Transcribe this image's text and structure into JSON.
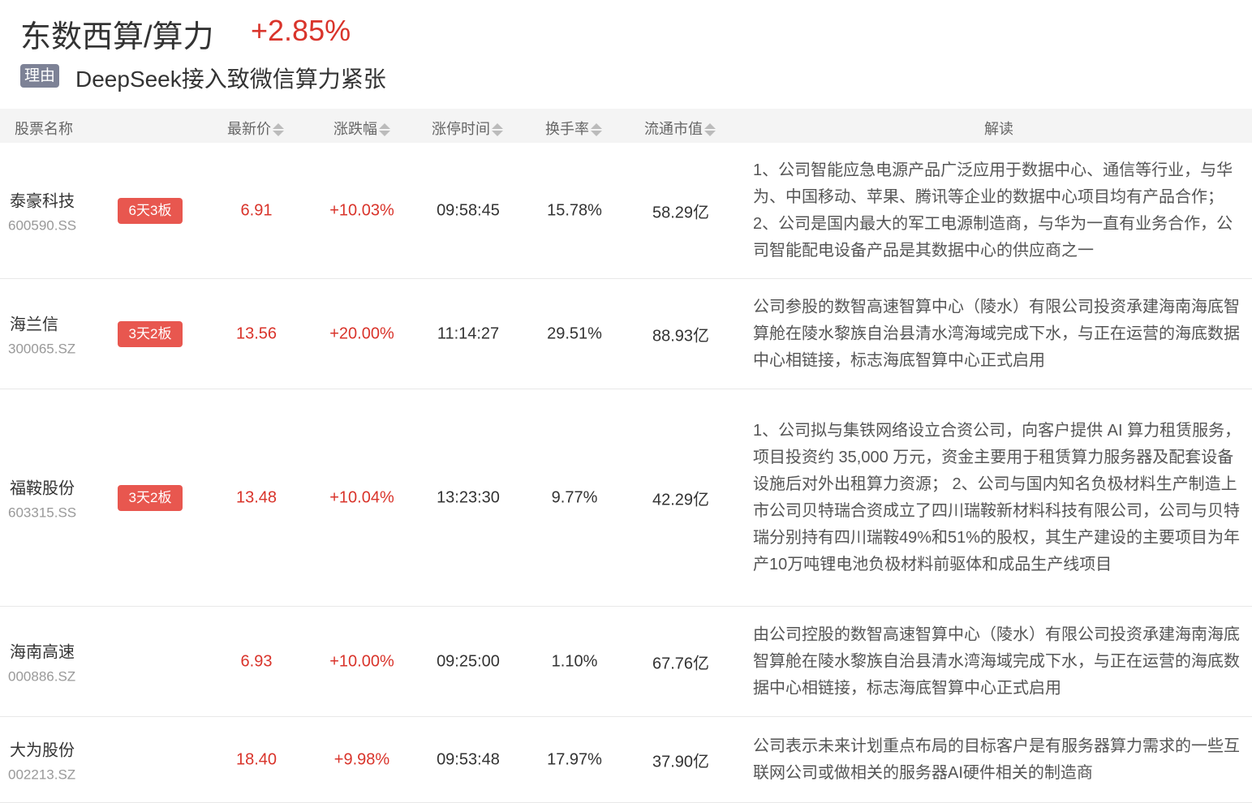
{
  "header": {
    "title": "东数西算/算力",
    "change": "+2.85%",
    "reason_tag": "理由",
    "reason": "DeepSeek接入致微信算力紧张"
  },
  "colors": {
    "up": "#d9342b",
    "badge": "#e8574f",
    "tag": "#7d8296"
  },
  "columns": [
    "股票名称",
    "最新价",
    "涨跌幅",
    "涨停时间",
    "换手率",
    "流通市值",
    "解读"
  ],
  "rows": [
    {
      "name": "泰豪科技",
      "code": "600590.SS",
      "badge": "6天3板",
      "price": "6.91",
      "change": "+10.03%",
      "time": "09:58:45",
      "turnover": "15.78%",
      "mcap": "58.29亿",
      "desc": "1、公司智能应急电源产品广泛应用于数据中心、通信等行业，与华为、中国移动、苹果、腾讯等企业的数据中心项目均有产品合作； 2、公司是国内最大的军工电源制造商，与华为一直有业务合作，公司智能配电设备产品是其数据中心的供应商之一"
    },
    {
      "name": "海兰信",
      "code": "300065.SZ",
      "badge": "3天2板",
      "price": "13.56",
      "change": "+20.00%",
      "time": "11:14:27",
      "turnover": "29.51%",
      "mcap": "88.93亿",
      "desc": "公司参股的数智高速智算中心（陵水）有限公司投资承建海南海底智算舱在陵水黎族自治县清水湾海域完成下水，与正在运营的海底数据中心相链接，标志海底智算中心正式启用"
    },
    {
      "name": "福鞍股份",
      "code": "603315.SS",
      "badge": "3天2板",
      "price": "13.48",
      "change": "+10.04%",
      "time": "13:23:30",
      "turnover": "9.77%",
      "mcap": "42.29亿",
      "desc": "1、公司拟与集铁网络设立合资公司，向客户提供 AI 算力租赁服务，项目投资约 35,000 万元，资金主要用于租赁算力服务器及配套设备设施后对外出租算力资源； 2、公司与国内知名负极材料生产制造上市公司贝特瑞合资成立了四川瑞鞍新材料科技有限公司，公司与贝特瑞分别持有四川瑞鞍49%和51%的股权，其生产建设的主要项目为年产10万吨锂电池负极材料前驱体和成品生产线项目"
    },
    {
      "name": "海南高速",
      "code": "000886.SZ",
      "badge": "",
      "price": "6.93",
      "change": "+10.00%",
      "time": "09:25:00",
      "turnover": "1.10%",
      "mcap": "67.76亿",
      "desc": "由公司控股的数智高速智算中心（陵水）有限公司投资承建海南海底智算舱在陵水黎族自治县清水湾海域完成下水，与正在运营的海底数据中心相链接，标志海底智算中心正式启用"
    },
    {
      "name": "大为股份",
      "code": "002213.SZ",
      "badge": "",
      "price": "18.40",
      "change": "+9.98%",
      "time": "09:53:48",
      "turnover": "17.97%",
      "mcap": "37.90亿",
      "desc": "公司表示未来计划重点布局的目标客户是有服务器算力需求的一些互联网公司或做相关的服务器AI硬件相关的制造商"
    }
  ]
}
